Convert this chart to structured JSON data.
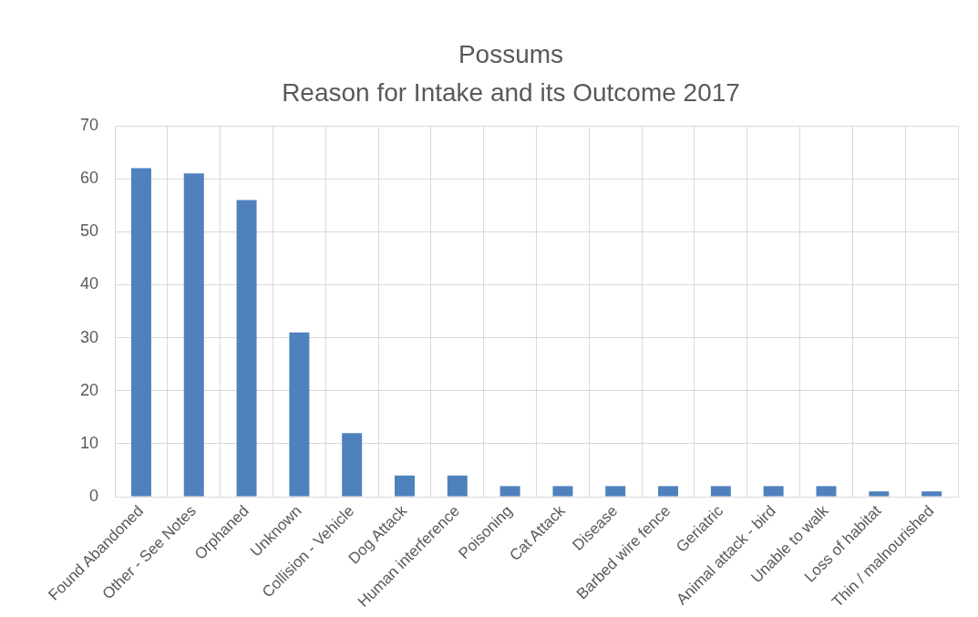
{
  "chart_data": {
    "type": "bar",
    "title": "Possums\nReason for Intake and its Outcome 2017",
    "categories": [
      "Found Abandoned",
      "Other - See Notes",
      "Orphaned",
      "Unknown",
      "Collision - Vehicle",
      "Dog Attack",
      "Human interference",
      "Poisoning",
      "Cat Attack",
      "Disease",
      "Barbed wire fence",
      "Geriatric",
      "Animal attack - bird",
      "Unable to walk",
      "Loss of habitat",
      "Thin / malnourished"
    ],
    "values": [
      62,
      61,
      56,
      31,
      12,
      4,
      4,
      2,
      2,
      2,
      2,
      2,
      2,
      2,
      1,
      1
    ],
    "color": "#4f81bd",
    "ylim": [
      0,
      70
    ],
    "yticks": [
      0,
      10,
      20,
      30,
      40,
      50,
      60,
      70
    ],
    "grid": true,
    "legend": false
  }
}
